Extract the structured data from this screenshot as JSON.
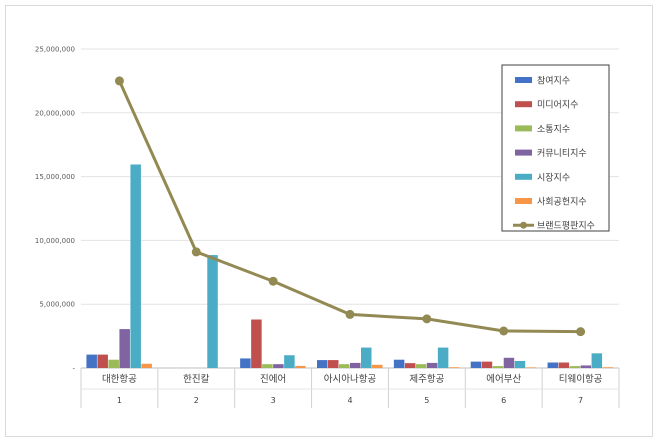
{
  "chart_data": {
    "type": "bar",
    "title": "",
    "xlabel": "",
    "ylabel": "",
    "ylim": [
      0,
      25000000
    ],
    "y_ticks": [
      {
        "value": 0,
        "label": "-"
      },
      {
        "value": 5000000,
        "label": "5,000,000"
      },
      {
        "value": 10000000,
        "label": "10,000,000"
      },
      {
        "value": 15000000,
        "label": "15,000,000"
      },
      {
        "value": 20000000,
        "label": "20,000,000"
      },
      {
        "value": 25000000,
        "label": "25,000,000"
      }
    ],
    "grid": true,
    "legend_position": "top-right",
    "categories": [
      "대한항공",
      "한진칼",
      "진에어",
      "아시아나항공",
      "제주항공",
      "에어부산",
      "티웨이항공"
    ],
    "category_numbers": [
      "1",
      "2",
      "3",
      "4",
      "5",
      "6",
      "7"
    ],
    "series": [
      {
        "name": "참여지수",
        "type": "bar",
        "color": "#4472c4",
        "values": [
          1050000,
          0,
          750000,
          620000,
          650000,
          500000,
          430000
        ]
      },
      {
        "name": "미디어지수",
        "type": "bar",
        "color": "#c0504d",
        "values": [
          1050000,
          0,
          3800000,
          620000,
          380000,
          500000,
          430000
        ]
      },
      {
        "name": "소통지수",
        "type": "bar",
        "color": "#9bbb59",
        "values": [
          650000,
          0,
          300000,
          300000,
          300000,
          150000,
          150000
        ]
      },
      {
        "name": "커뮤니티지수",
        "type": "bar",
        "color": "#8064a2",
        "values": [
          3050000,
          0,
          300000,
          400000,
          400000,
          800000,
          200000
        ]
      },
      {
        "name": "시장지수",
        "type": "bar",
        "color": "#4bacc6",
        "values": [
          15950000,
          8850000,
          1000000,
          1600000,
          1600000,
          550000,
          1150000
        ]
      },
      {
        "name": "사회공헌지수",
        "type": "bar",
        "color": "#f79646",
        "values": [
          330000,
          0,
          160000,
          250000,
          60000,
          50000,
          60000
        ]
      },
      {
        "name": "브랜드평판지수",
        "type": "line",
        "color": "#938953",
        "values": [
          22500000,
          9100000,
          6800000,
          4200000,
          3850000,
          2900000,
          2850000
        ]
      }
    ]
  }
}
